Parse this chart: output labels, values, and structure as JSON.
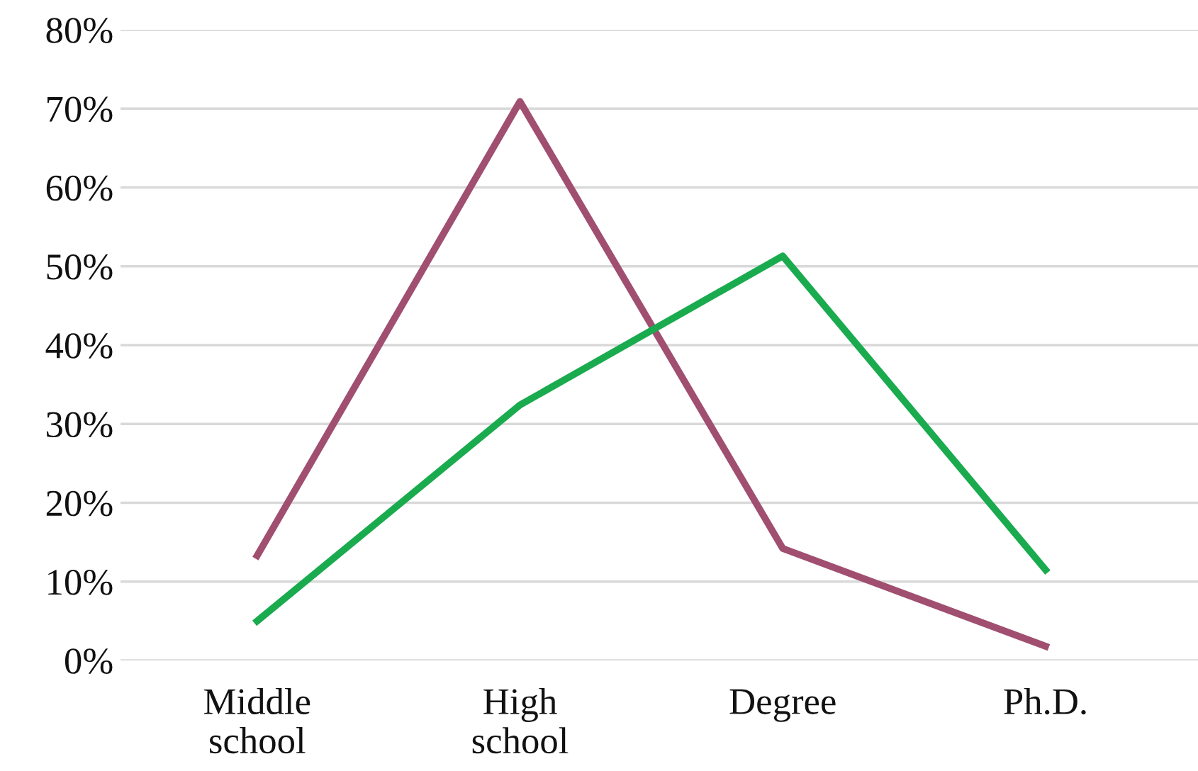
{
  "chart_data": {
    "type": "line",
    "categories": [
      "Middle\nschool",
      "High\nschool",
      "Degree",
      "Ph.D."
    ],
    "series": [
      {
        "color": "#a04f70",
        "values": [
          13.3,
          70.9,
          14.2,
          1.8
        ]
      },
      {
        "color": "#1aab4f",
        "values": [
          5.0,
          32.4,
          51.3,
          11.5
        ]
      }
    ],
    "ylim": [
      0,
      80
    ],
    "yticks": [
      {
        "value": 0,
        "label": "0%"
      },
      {
        "value": 10,
        "label": "10%"
      },
      {
        "value": 20,
        "label": "20%"
      },
      {
        "value": 30,
        "label": "30%"
      },
      {
        "value": 40,
        "label": "40%"
      },
      {
        "value": 50,
        "label": "50%"
      },
      {
        "value": 60,
        "label": "60%"
      },
      {
        "value": 70,
        "label": "70%"
      },
      {
        "value": 80,
        "label": "80%"
      }
    ],
    "grid": "y",
    "marker": "none",
    "line_style": "solid"
  }
}
